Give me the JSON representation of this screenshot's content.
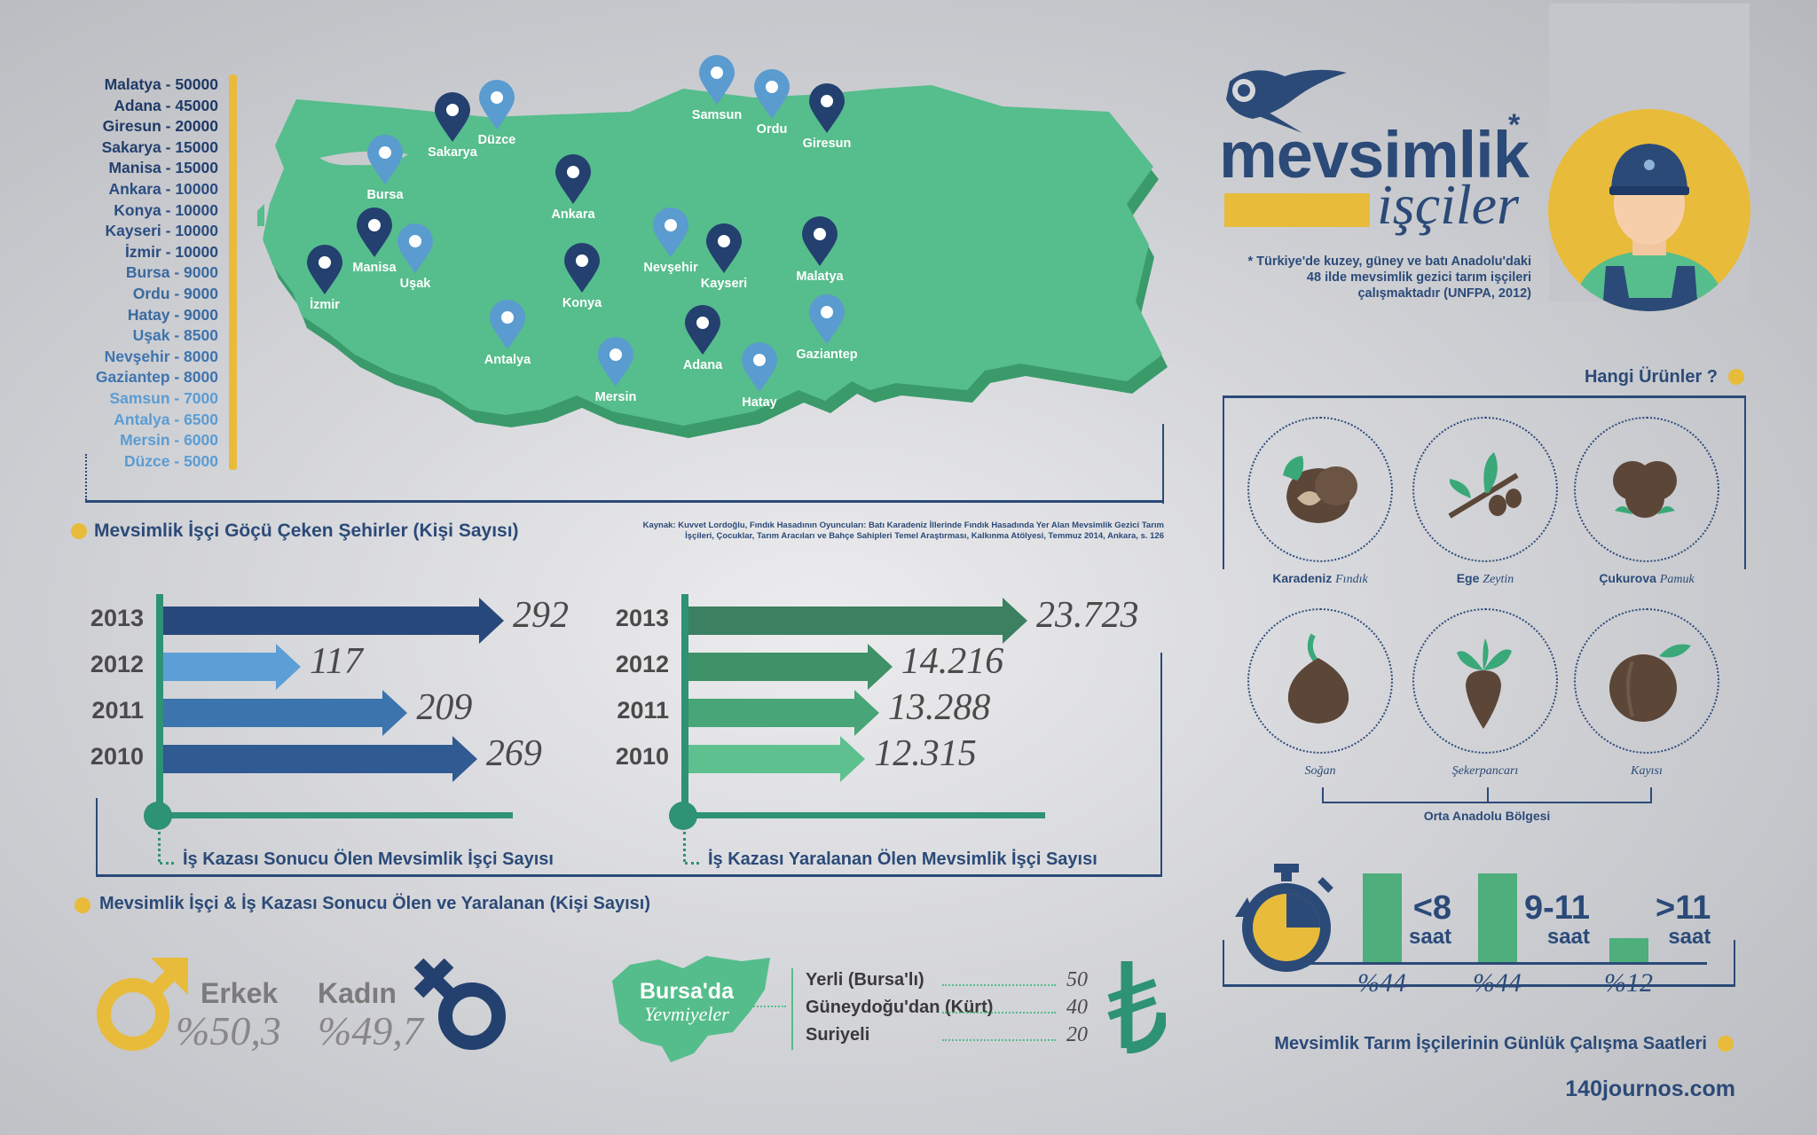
{
  "city_list": [
    {
      "label": "Malatya - 50000",
      "color": "#1f3a66"
    },
    {
      "label": "Adana - 45000",
      "color": "#1f3a66"
    },
    {
      "label": "Giresun - 20000",
      "color": "#1f3a66"
    },
    {
      "label": "Sakarya - 15000",
      "color": "#23406f"
    },
    {
      "label": "Manisa - 15000",
      "color": "#23406f"
    },
    {
      "label": "Ankara - 10000",
      "color": "#2b4d80"
    },
    {
      "label": "Konya - 10000",
      "color": "#2b4d80"
    },
    {
      "label": "Kayseri - 10000",
      "color": "#2b4d80"
    },
    {
      "label": "İzmir - 10000",
      "color": "#2b4d80"
    },
    {
      "label": "Bursa - 9000",
      "color": "#3a6aa0"
    },
    {
      "label": "Ordu - 9000",
      "color": "#3a6aa0"
    },
    {
      "label": "Hatay - 9000",
      "color": "#3a6aa0"
    },
    {
      "label": "Uşak - 8500",
      "color": "#3f74ad"
    },
    {
      "label": "Nevşehir - 8000",
      "color": "#3f74ad"
    },
    {
      "label": "Gaziantep - 8000",
      "color": "#3f74ad"
    },
    {
      "label": "Samsun - 7000",
      "color": "#5b9cd2"
    },
    {
      "label": "Antalya - 6500",
      "color": "#5b9cd2"
    },
    {
      "label": "Mersin - 6000",
      "color": "#5b9cd2"
    },
    {
      "label": "Düzce - 5000",
      "color": "#5b9cd2"
    }
  ],
  "map_pins": [
    {
      "name": "Sakarya",
      "dark": true
    },
    {
      "name": "Düzce",
      "dark": false
    },
    {
      "name": "Bursa",
      "dark": false
    },
    {
      "name": "Manisa",
      "dark": true
    },
    {
      "name": "Uşak",
      "dark": false
    },
    {
      "name": "İzmir",
      "dark": true
    },
    {
      "name": "Ankara",
      "dark": true
    },
    {
      "name": "Konya",
      "dark": true
    },
    {
      "name": "Antalya",
      "dark": false
    },
    {
      "name": "Mersin",
      "dark": false
    },
    {
      "name": "Adana",
      "dark": true
    },
    {
      "name": "Hatay",
      "dark": false
    },
    {
      "name": "Nevşehir",
      "dark": false
    },
    {
      "name": "Kayseri",
      "dark": true
    },
    {
      "name": "Malatya",
      "dark": true
    },
    {
      "name": "Gaziantep",
      "dark": false
    },
    {
      "name": "Samsun",
      "dark": false
    },
    {
      "name": "Ordu",
      "dark": false
    },
    {
      "name": "Giresun",
      "dark": true
    }
  ],
  "map_title": "Mevsimlik İşçi Göçü Çeken Şehirler (Kişi Sayısı)",
  "source_line1": "Kaynak: Kuvvet Lordoğlu, Fındık Hasadının Oyuncuları: Batı Karadeniz İllerinde Fındık Hasadında Yer Alan Mevsimlik Gezici Tarım",
  "source_line2": "İşçileri, Çocuklar, Tarım Aracıları ve Bahçe Sahipleri Temel Araştırması, Kalkınma Atölyesi, Temmuz 2014, Ankara, s. 126",
  "logo": {
    "word1": "mevsimlik",
    "word2": "işçiler",
    "asterisk": "*"
  },
  "footnote": [
    "* Türkiye'de kuzey, güney ve batı Anadolu'daki",
    "48 ilde mevsimlik gezici tarım işçileri",
    "çalışmaktadır (UNFPA, 2012)"
  ],
  "products_title": "Hangi Ürünler ?",
  "products": [
    {
      "region": "Karadeniz",
      "product": "Fındık",
      "icon": "hazelnut-icon"
    },
    {
      "region": "Ege",
      "product": "Zeytin",
      "icon": "olive-icon"
    },
    {
      "region": "Çukurova",
      "product": "Pamuk",
      "icon": "cotton-icon"
    },
    {
      "region": "",
      "product": "Soğan",
      "icon": "onion-icon"
    },
    {
      "region": "",
      "product": "Şekerpancarı",
      "icon": "sugar-beet-icon"
    },
    {
      "region": "",
      "product": "Kayısı",
      "icon": "apricot-icon"
    }
  ],
  "central_region": "Orta Anadolu Bölgesi",
  "chart_data": [
    {
      "type": "bar",
      "orientation": "horizontal",
      "title": "İş Kazası Sonucu Ölen Mevsimlik İşçi Sayısı",
      "categories": [
        "2013",
        "2012",
        "2011",
        "2010"
      ],
      "values": [
        292,
        117,
        209,
        269
      ],
      "value_labels": [
        "292",
        "117",
        "209",
        "269"
      ],
      "colors": [
        "#27487a",
        "#5b9fd6",
        "#3c74ad",
        "#2f5a92"
      ]
    },
    {
      "type": "bar",
      "orientation": "horizontal",
      "title": "İş Kazası Yaralanan Ölen Mevsimlik İşçi Sayısı",
      "categories": [
        "2013",
        "2012",
        "2011",
        "2010"
      ],
      "values": [
        23723,
        14216,
        13288,
        12315
      ],
      "value_labels": [
        "23.723",
        "14.216",
        "13.288",
        "12.315"
      ],
      "colors": [
        "#3b8060",
        "#3f9168",
        "#47a578",
        "#5fc08f"
      ]
    },
    {
      "type": "bar",
      "title": "Mevsimlik Tarım İşçilerinin Günlük Çalışma Saatleri",
      "categories": [
        "<8 saat",
        "9-11 saat",
        ">11 saat"
      ],
      "values": [
        44,
        44,
        12
      ],
      "category_main": [
        "<8",
        "9-11",
        ">11"
      ],
      "category_unit": "saat",
      "value_labels": [
        "%44",
        "%44",
        "%12"
      ],
      "color": "#4eae7c"
    }
  ],
  "section_title": "Mevsimlik İşçi & İş Kazası Sonucu Ölen ve Yaralanan (Kişi Sayısı)",
  "gender": {
    "male_label": "Erkek",
    "male_value": "%50,3",
    "female_label": "Kadın",
    "female_value": "%49,7"
  },
  "wages": {
    "title1": "Bursa'da",
    "title2": "Yevmiyeler",
    "rows": [
      {
        "label": "Yerli (Bursa'lı)",
        "value": "50"
      },
      {
        "label": "Güneydoğu'dan (Kürt)",
        "value": "40"
      },
      {
        "label": "Suriyeli",
        "value": "20"
      }
    ]
  },
  "website": "140journos.com",
  "colors": {
    "navy": "#2b4a78",
    "green": "#55bd8c",
    "yellow": "#e8bb3a"
  }
}
